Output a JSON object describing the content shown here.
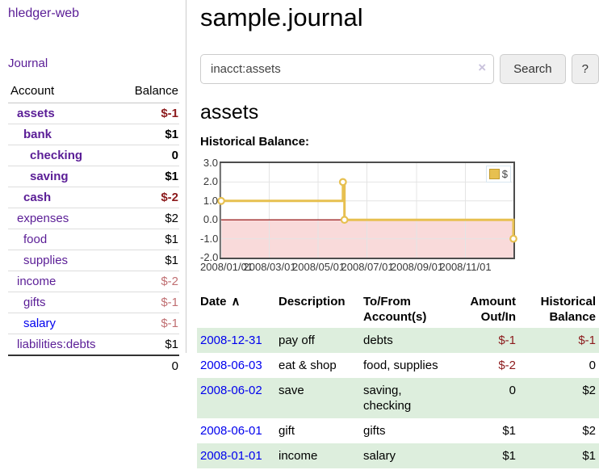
{
  "app": {
    "title": "hledger-web",
    "nav_journal": "Journal"
  },
  "colors": {
    "accent_purple": "#5a1d96",
    "link_blue": "#0000ee",
    "negative_strong": "#8c1a1c",
    "negative_soft": "#c06f72",
    "row_green": "#ddeedd",
    "chart_gold": "#e7c050",
    "chart_pink": "#f9dada",
    "zero_line_red": "#8b0000"
  },
  "sidebar": {
    "columns": {
      "account": "Account",
      "balance": "Balance"
    },
    "accounts": [
      {
        "name": "assets",
        "depth": 1,
        "bold": true,
        "balance": "$-1",
        "balance_class": "neg"
      },
      {
        "name": "bank",
        "depth": 2,
        "bold": true,
        "balance": "$1",
        "balance_class": "pos"
      },
      {
        "name": "checking",
        "depth": 3,
        "bold": true,
        "balance": "0",
        "balance_class": "pos"
      },
      {
        "name": "saving",
        "depth": 3,
        "bold": true,
        "balance": "$1",
        "balance_class": "pos"
      },
      {
        "name": "cash",
        "depth": 2,
        "bold": true,
        "balance": "$-2",
        "balance_class": "neg"
      },
      {
        "name": "expenses",
        "depth": 1,
        "bold": false,
        "balance": "$2",
        "balance_class": "pos"
      },
      {
        "name": "food",
        "depth": 2,
        "bold": false,
        "balance": "$1",
        "balance_class": "pos"
      },
      {
        "name": "supplies",
        "depth": 2,
        "bold": false,
        "balance": "$1",
        "balance_class": "pos"
      },
      {
        "name": "income",
        "depth": 1,
        "bold": false,
        "balance": "$-2",
        "balance_class": "neg-soft"
      },
      {
        "name": "gifts",
        "depth": 2,
        "bold": false,
        "balance": "$-1",
        "balance_class": "neg-soft"
      },
      {
        "name": "salary",
        "depth": 2,
        "bold": false,
        "link_color": "blue",
        "balance": "$-1",
        "balance_class": "neg-soft"
      },
      {
        "name": "liabilities:debts",
        "depth": 1,
        "bold": false,
        "balance": "$1",
        "balance_class": "pos"
      }
    ],
    "total": "0"
  },
  "header": {
    "title": "sample.journal"
  },
  "search": {
    "value": "inacct:assets",
    "clear_icon": "×",
    "button": "Search",
    "help_button": "?"
  },
  "account_page": {
    "title": "assets",
    "chart_label": "Historical Balance:"
  },
  "chart_data": {
    "type": "line",
    "step": true,
    "title": "Historical Balance",
    "series": [
      {
        "name": "$",
        "color": "#e7c050",
        "points": [
          [
            "2008/01/01",
            1
          ],
          [
            "2008/06/01",
            2
          ],
          [
            "2008/06/03",
            0
          ],
          [
            "2008/12/31",
            -1
          ]
        ]
      }
    ],
    "x_range": [
      "2008/01/01",
      "2008/12/31"
    ],
    "ylim": [
      -2,
      3
    ],
    "yticks": [
      3,
      2,
      1,
      0,
      -1,
      -2
    ],
    "ytick_labels": [
      "3.0",
      "2.0",
      "1.0",
      "0.0",
      "-1.0",
      "-2.0"
    ],
    "xticks": [
      "2008/01/01",
      "2008/03/01",
      "2008/05/01",
      "2008/07/01",
      "2008/09/01",
      "2008/11/01"
    ],
    "legend_position": "top-right",
    "grid": true,
    "negative_region_color": "#f9dada",
    "zero_line_color": "#8b0000"
  },
  "register": {
    "headers": {
      "date": "Date",
      "sort_icon": "∧",
      "description": "Description",
      "account": "To/From Account(s)",
      "amount": "Amount Out/In",
      "balance": "Historical Balance"
    },
    "rows": [
      {
        "date": "2008-12-31",
        "description": "pay off",
        "accounts": "debts",
        "amount": "$-1",
        "amount_class": "neg",
        "balance": "$-1",
        "balance_class": "neg",
        "shaded": true
      },
      {
        "date": "2008-06-03",
        "description": "eat & shop",
        "accounts": "food, supplies",
        "amount": "$-2",
        "amount_class": "neg",
        "balance": "0",
        "balance_class": "pos",
        "shaded": false
      },
      {
        "date": "2008-06-02",
        "description": "save",
        "accounts": "saving, checking",
        "amount": "0",
        "amount_class": "pos",
        "balance": "$2",
        "balance_class": "pos",
        "shaded": true
      },
      {
        "date": "2008-06-01",
        "description": "gift",
        "accounts": "gifts",
        "amount": "$1",
        "amount_class": "pos",
        "balance": "$2",
        "balance_class": "pos",
        "shaded": false
      },
      {
        "date": "2008-01-01",
        "description": "income",
        "accounts": "salary",
        "amount": "$1",
        "amount_class": "pos",
        "balance": "$1",
        "balance_class": "pos",
        "shaded": true
      }
    ]
  }
}
